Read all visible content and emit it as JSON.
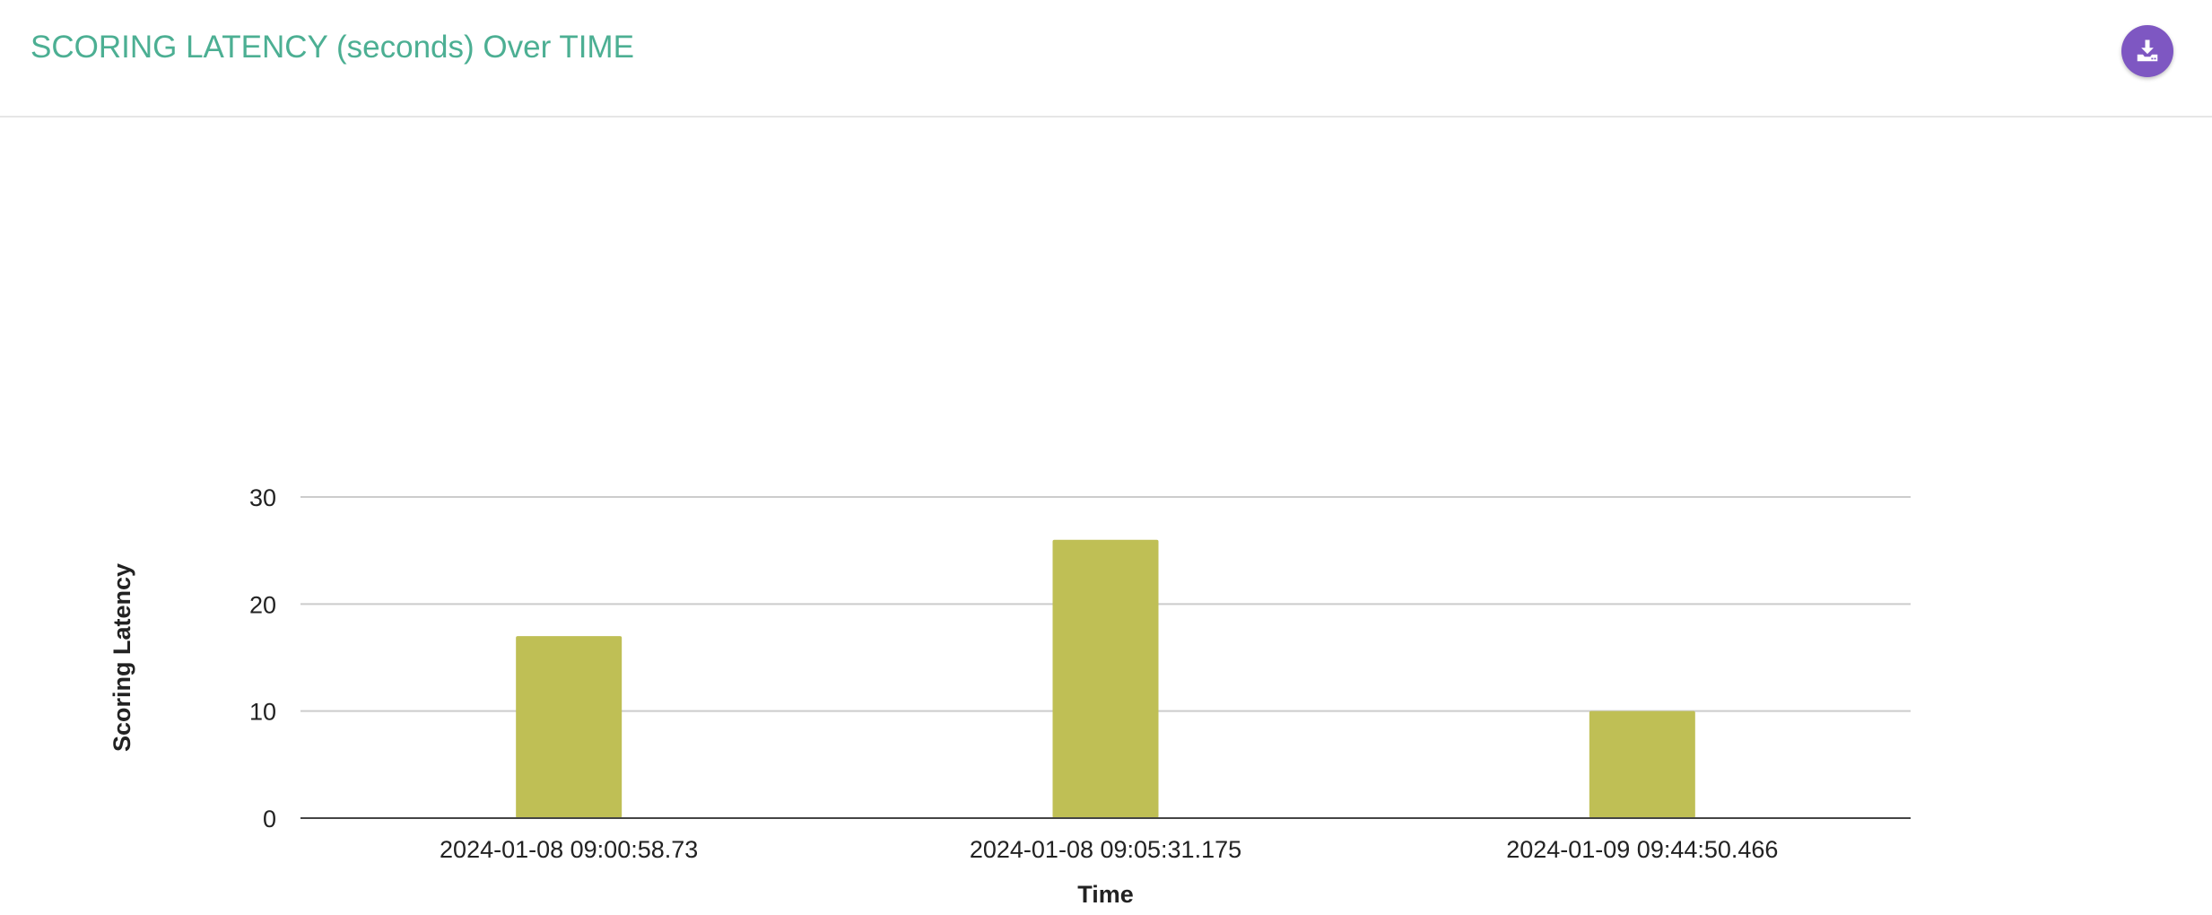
{
  "header": {
    "title": "SCORING LATENCY (seconds) Over TIME",
    "download_icon": "download-tray-icon"
  },
  "colors": {
    "title": "#4caf93",
    "button": "#7e57c2",
    "bar": "#bfbf55",
    "grid": "#cccccc",
    "axis": "#444444"
  },
  "chart_data": {
    "type": "bar",
    "categories": [
      "2024-01-08 09:00:58.73",
      "2024-01-08 09:05:31.175",
      "2024-01-09 09:44:50.466"
    ],
    "series": [
      {
        "values": [
          17,
          26,
          10
        ]
      }
    ],
    "xlabel": "Time",
    "ylabel": "Scoring Latency",
    "ylim": [
      0,
      30
    ],
    "yticks": [
      0,
      10,
      20,
      30
    ],
    "grid": true,
    "legend": "none"
  }
}
